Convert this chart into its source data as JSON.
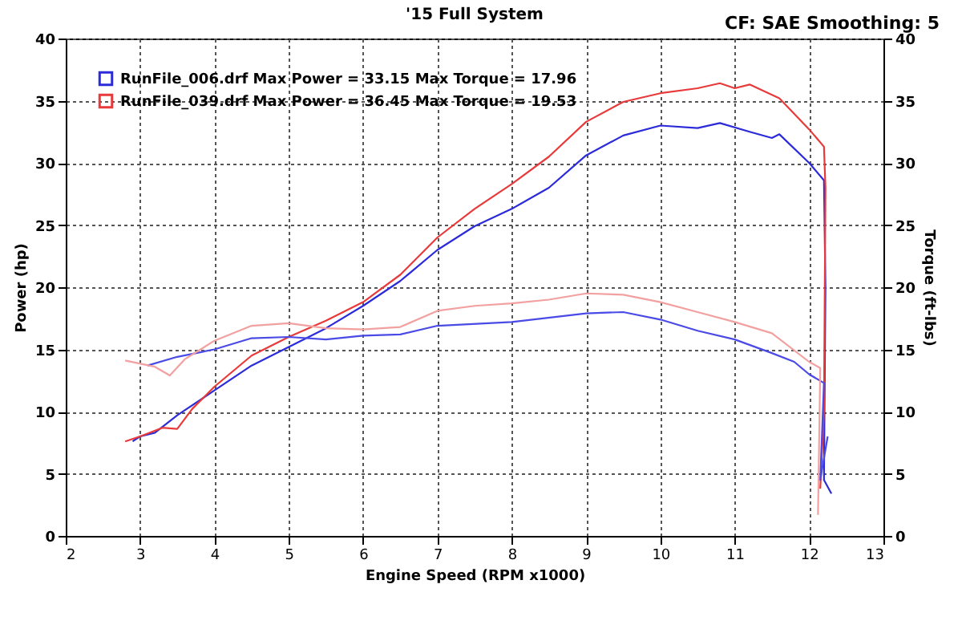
{
  "chart_data": {
    "type": "line",
    "title": "'15 Full System",
    "annotations": [
      "CF: SAE  Smoothing: 5"
    ],
    "xlabel": "Engine Speed (RPM x1000)",
    "ylabel": "Power (hp)",
    "y2label": "Torque (ft-lbs)",
    "xlim": [
      2,
      13
    ],
    "xticks": [
      2,
      3,
      4,
      5,
      6,
      7,
      8,
      9,
      10,
      11,
      12,
      13
    ],
    "ylim": [
      0,
      40
    ],
    "yticks": [
      0,
      5,
      10,
      15,
      20,
      25,
      30,
      35,
      40
    ],
    "y2lim": [
      0,
      40
    ],
    "y2ticks": [
      0,
      5,
      10,
      15,
      20,
      25,
      30,
      35,
      40
    ],
    "grid": true,
    "legend": "top left",
    "line_style": "solid",
    "series": [
      {
        "name": "RunFile_006.drf Max Power = 33.15     Max Torque = 17.96",
        "color": "#2b2bd9",
        "x": [
          2.9,
          3.0,
          3.2,
          3.5,
          4.0,
          4.5,
          5.0,
          5.5,
          6.0,
          6.5,
          7.0,
          7.5,
          8.0,
          8.5,
          9.0,
          9.5,
          10.0,
          10.5,
          10.8,
          11.2,
          11.5,
          11.6,
          12.0,
          12.2,
          12.22,
          12.2,
          12.3
        ],
        "values": [
          7.6,
          8.0,
          8.3,
          9.7,
          11.7,
          13.7,
          15.2,
          16.7,
          18.5,
          20.5,
          23.0,
          24.9,
          26.3,
          28.0,
          30.6,
          32.2,
          33.0,
          32.8,
          33.2,
          32.5,
          32.0,
          32.3,
          30.0,
          28.6,
          20.0,
          4.5,
          3.4
        ]
      },
      {
        "name": "RunFile_039.drf Max Power = 36.45     Max Torque = 19.53",
        "color": "#e83a3a",
        "x": [
          2.8,
          3.0,
          3.3,
          3.5,
          3.7,
          4.0,
          4.5,
          5.0,
          5.5,
          6.0,
          6.5,
          7.0,
          7.5,
          8.0,
          8.5,
          9.0,
          9.5,
          10.0,
          10.5,
          10.8,
          11.0,
          11.2,
          11.6,
          12.0,
          12.2,
          12.22,
          12.2,
          12.15
        ],
        "values": [
          7.6,
          8.0,
          8.7,
          8.6,
          10.2,
          12.0,
          14.5,
          16.0,
          17.3,
          18.8,
          21.0,
          24.0,
          26.3,
          28.3,
          30.5,
          33.3,
          34.9,
          35.6,
          36.0,
          36.4,
          36.0,
          36.3,
          35.2,
          32.7,
          31.3,
          28.0,
          10.0,
          3.8
        ]
      },
      {
        "axis": "y2",
        "color": "#4a4ae6",
        "x": [
          3.1,
          3.5,
          4.0,
          4.5,
          5.0,
          5.5,
          6.0,
          6.5,
          7.0,
          8.0,
          9.0,
          9.5,
          10.0,
          10.5,
          11.0,
          11.5,
          11.8,
          12.0,
          12.2,
          12.15,
          12.25
        ],
        "values": [
          13.7,
          14.4,
          15.0,
          15.9,
          16.0,
          15.8,
          16.1,
          16.2,
          16.9,
          17.2,
          17.9,
          18.0,
          17.4,
          16.5,
          15.8,
          14.7,
          14.0,
          13.0,
          12.3,
          4.5,
          8.0
        ]
      },
      {
        "axis": "y2",
        "color": "#f2a0a0",
        "x": [
          2.8,
          3.2,
          3.4,
          3.6,
          4.0,
          4.5,
          5.0,
          5.5,
          6.0,
          6.5,
          7.0,
          7.5,
          8.0,
          8.5,
          9.0,
          9.5,
          10.0,
          10.5,
          11.0,
          11.5,
          12.0,
          12.15,
          12.12
        ],
        "values": [
          14.1,
          13.6,
          12.9,
          14.2,
          15.7,
          16.9,
          17.1,
          16.7,
          16.6,
          16.8,
          18.1,
          18.5,
          18.7,
          19.0,
          19.5,
          19.4,
          18.8,
          18.0,
          17.2,
          16.3,
          14.0,
          13.5,
          1.7
        ]
      }
    ]
  }
}
